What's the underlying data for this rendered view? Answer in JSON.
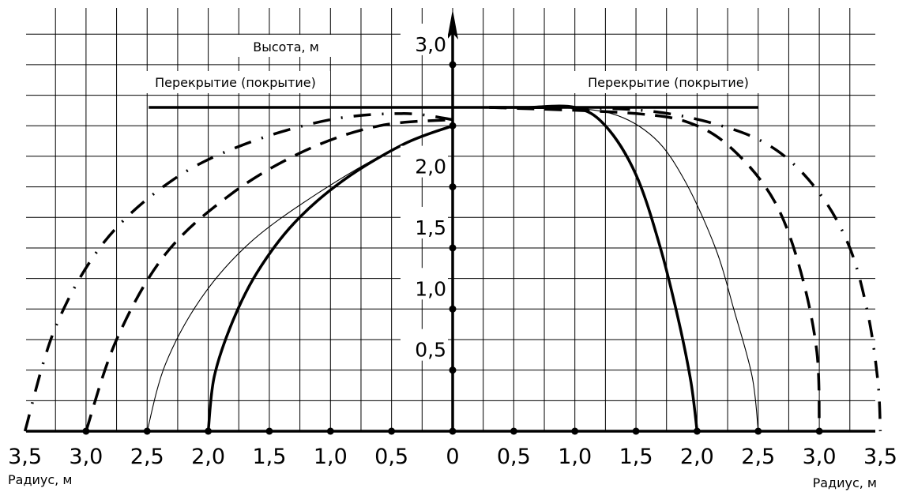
{
  "chart_data": {
    "type": "line",
    "x_label_left": "Радиус, м",
    "x_label_right": "Радиус, м",
    "y_label": "Высота, м",
    "ceiling_label_left": "Перекрытие (покрытие)",
    "ceiling_label_right": "Перекрытие (покрытие)",
    "x_range": [
      -3.5,
      3.5
    ],
    "y_range": [
      0,
      3.25
    ],
    "x_ticks": [
      {
        "value": -3.5,
        "label": "3,5"
      },
      {
        "value": -3.0,
        "label": "3,0"
      },
      {
        "value": -2.5,
        "label": "2,5"
      },
      {
        "value": -2.0,
        "label": "2,0"
      },
      {
        "value": -1.5,
        "label": "1,5"
      },
      {
        "value": -1.0,
        "label": "1,0"
      },
      {
        "value": -0.5,
        "label": "0,5"
      },
      {
        "value": 0,
        "label": "0"
      },
      {
        "value": 0.5,
        "label": "0,5"
      },
      {
        "value": 1.0,
        "label": "1,0"
      },
      {
        "value": 1.5,
        "label": "1,5"
      },
      {
        "value": 2.0,
        "label": "2,0"
      },
      {
        "value": 2.5,
        "label": "2,5"
      },
      {
        "value": 3.0,
        "label": "3,0"
      },
      {
        "value": 3.5,
        "label": "3,5"
      }
    ],
    "y_ticks": [
      {
        "value": 0.5,
        "label": "0,5"
      },
      {
        "value": 1.0,
        "label": "1,0"
      },
      {
        "value": 1.5,
        "label": "1,5"
      },
      {
        "value": 2.0,
        "label": "2,0"
      },
      {
        "value": 3.0,
        "label": "3,0"
      }
    ],
    "y_tick_dots": [
      0.5,
      1.0,
      1.5,
      2.0,
      2.5,
      3.0
    ],
    "ceiling": {
      "y": 2.65,
      "x_from": -2.5,
      "x_to": 2.5
    },
    "series": [
      {
        "style": "solid-thick",
        "left": [
          [
            -2.0,
            0
          ],
          [
            -1.95,
            0.45
          ],
          [
            -1.8,
            0.9
          ],
          [
            -1.6,
            1.3
          ],
          [
            -1.3,
            1.7
          ],
          [
            -0.9,
            2.05
          ],
          [
            -0.4,
            2.35
          ],
          [
            0,
            2.5
          ]
        ],
        "right": [
          [
            0.3,
            2.65
          ],
          [
            0.6,
            2.65
          ],
          [
            1.0,
            2.65
          ],
          [
            1.25,
            2.5
          ],
          [
            1.5,
            2.1
          ],
          [
            1.7,
            1.5
          ],
          [
            1.85,
            0.9
          ],
          [
            1.95,
            0.4
          ],
          [
            2.0,
            0
          ]
        ]
      },
      {
        "style": "solid-thin",
        "left": [
          [
            -2.5,
            0
          ],
          [
            -2.35,
            0.55
          ],
          [
            -2.05,
            1.1
          ],
          [
            -1.65,
            1.55
          ],
          [
            -1.1,
            1.95
          ],
          [
            -0.5,
            2.3
          ],
          [
            0,
            2.5
          ]
        ],
        "right": [
          [
            0.3,
            2.65
          ],
          [
            0.8,
            2.65
          ],
          [
            1.3,
            2.6
          ],
          [
            1.65,
            2.4
          ],
          [
            1.9,
            2.05
          ],
          [
            2.15,
            1.5
          ],
          [
            2.3,
            1.0
          ],
          [
            2.45,
            0.45
          ],
          [
            2.5,
            0
          ]
        ]
      },
      {
        "style": "dashed",
        "left": [
          [
            -3.0,
            0
          ],
          [
            -2.75,
            0.75
          ],
          [
            -2.35,
            1.45
          ],
          [
            -1.8,
            1.95
          ],
          [
            -1.2,
            2.3
          ],
          [
            -0.6,
            2.5
          ],
          [
            0,
            2.55
          ]
        ],
        "right": [
          [
            0.3,
            2.65
          ],
          [
            1.5,
            2.6
          ],
          [
            2.0,
            2.5
          ],
          [
            2.35,
            2.25
          ],
          [
            2.65,
            1.85
          ],
          [
            2.85,
            1.3
          ],
          [
            2.98,
            0.65
          ],
          [
            3.0,
            0
          ]
        ]
      },
      {
        "style": "dash-dot",
        "left": [
          [
            -3.5,
            0
          ],
          [
            -3.25,
            0.85
          ],
          [
            -2.85,
            1.55
          ],
          [
            -2.3,
            2.05
          ],
          [
            -1.7,
            2.35
          ],
          [
            -1.0,
            2.55
          ],
          [
            -0.4,
            2.6
          ],
          [
            0,
            2.55
          ]
        ],
        "right": [
          [
            0.3,
            2.65
          ],
          [
            1.5,
            2.63
          ],
          [
            2.2,
            2.5
          ],
          [
            2.65,
            2.3
          ],
          [
            3.0,
            1.95
          ],
          [
            3.25,
            1.5
          ],
          [
            3.4,
            0.95
          ],
          [
            3.48,
            0.4
          ],
          [
            3.5,
            0
          ]
        ]
      }
    ]
  }
}
